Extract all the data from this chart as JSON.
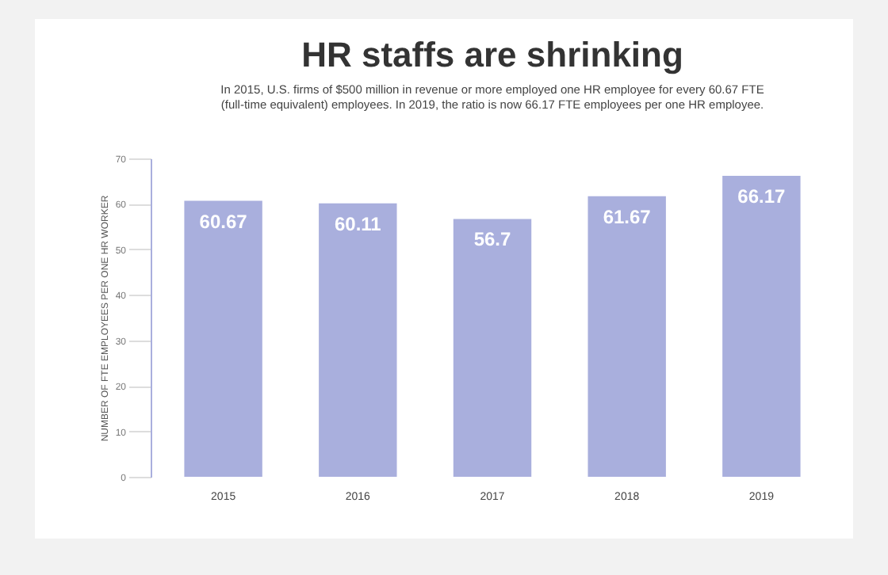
{
  "chart_data": {
    "type": "bar",
    "title": "HR staffs are shrinking",
    "subtitle": "In 2015, U.S. firms of $500 million in revenue or more employed one HR employee for every 60.67 FTE (full-time equivalent) employees. In 2019, the ratio is now 66.17 FTE employees per one HR employee.",
    "ylabel": "NUMBER OF FTE EMPLOYEES PER ONE HR WORKER",
    "categories": [
      "2015",
      "2016",
      "2017",
      "2018",
      "2019"
    ],
    "values": [
      60.67,
      60.11,
      56.7,
      61.67,
      66.17
    ],
    "color": "#a9afdd",
    "ylim": [
      0,
      70
    ],
    "yticks": [
      0,
      10,
      20,
      30,
      40,
      50,
      60,
      70
    ],
    "data_labels": true
  }
}
